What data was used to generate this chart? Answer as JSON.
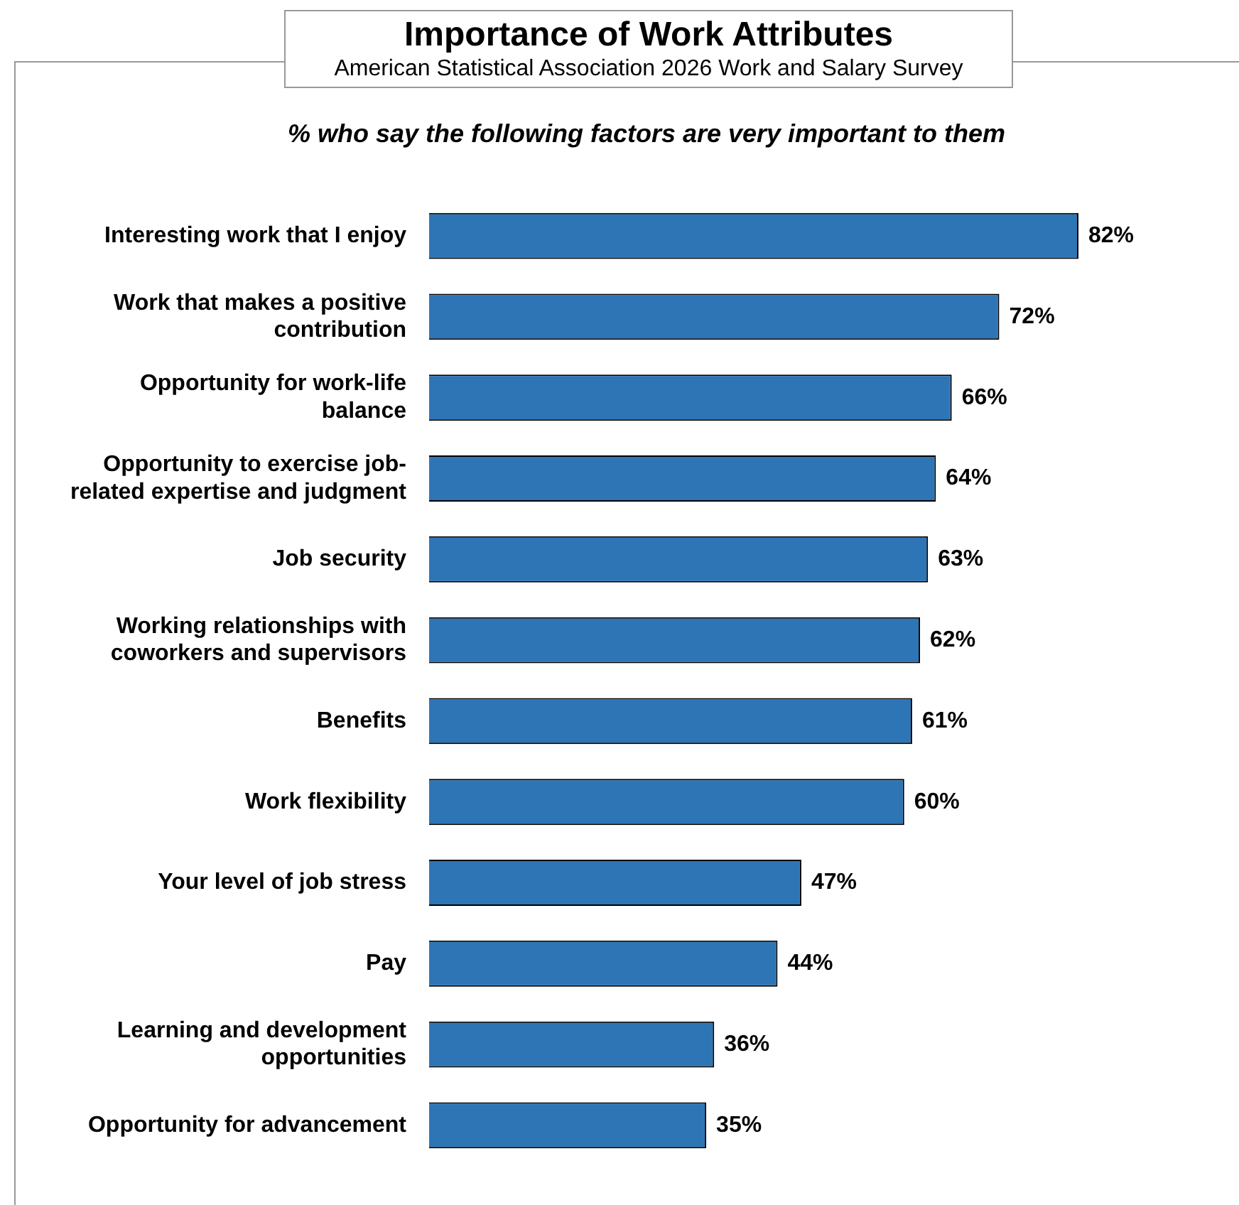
{
  "chart_data": {
    "type": "bar",
    "orientation": "horizontal",
    "title": "Importance of Work Attributes",
    "subtitle": "American Statistical Association 2026 Work and Salary Survey",
    "annotations": [
      "% who say the following factors are very important to them"
    ],
    "categories": [
      "Interesting work that I enjoy",
      "Work that makes a positive contribution",
      "Opportunity for work-life balance",
      "Opportunity to exercise job-related expertise and judgment",
      "Job security",
      "Working relationships with coworkers and supervisors",
      "Benefits",
      "Work flexibility",
      "Your level of job stress",
      "Pay",
      "Learning and development opportunities",
      "Opportunity for advancement"
    ],
    "values": [
      82,
      72,
      66,
      64,
      63,
      62,
      61,
      60,
      47,
      44,
      36,
      35
    ],
    "value_labels": [
      "82%",
      "72%",
      "66%",
      "64%",
      "63%",
      "62%",
      "61%",
      "60%",
      "47%",
      "44%",
      "36%",
      "35%"
    ],
    "color": "#2e75b6",
    "tick_labels": "y"
  }
}
